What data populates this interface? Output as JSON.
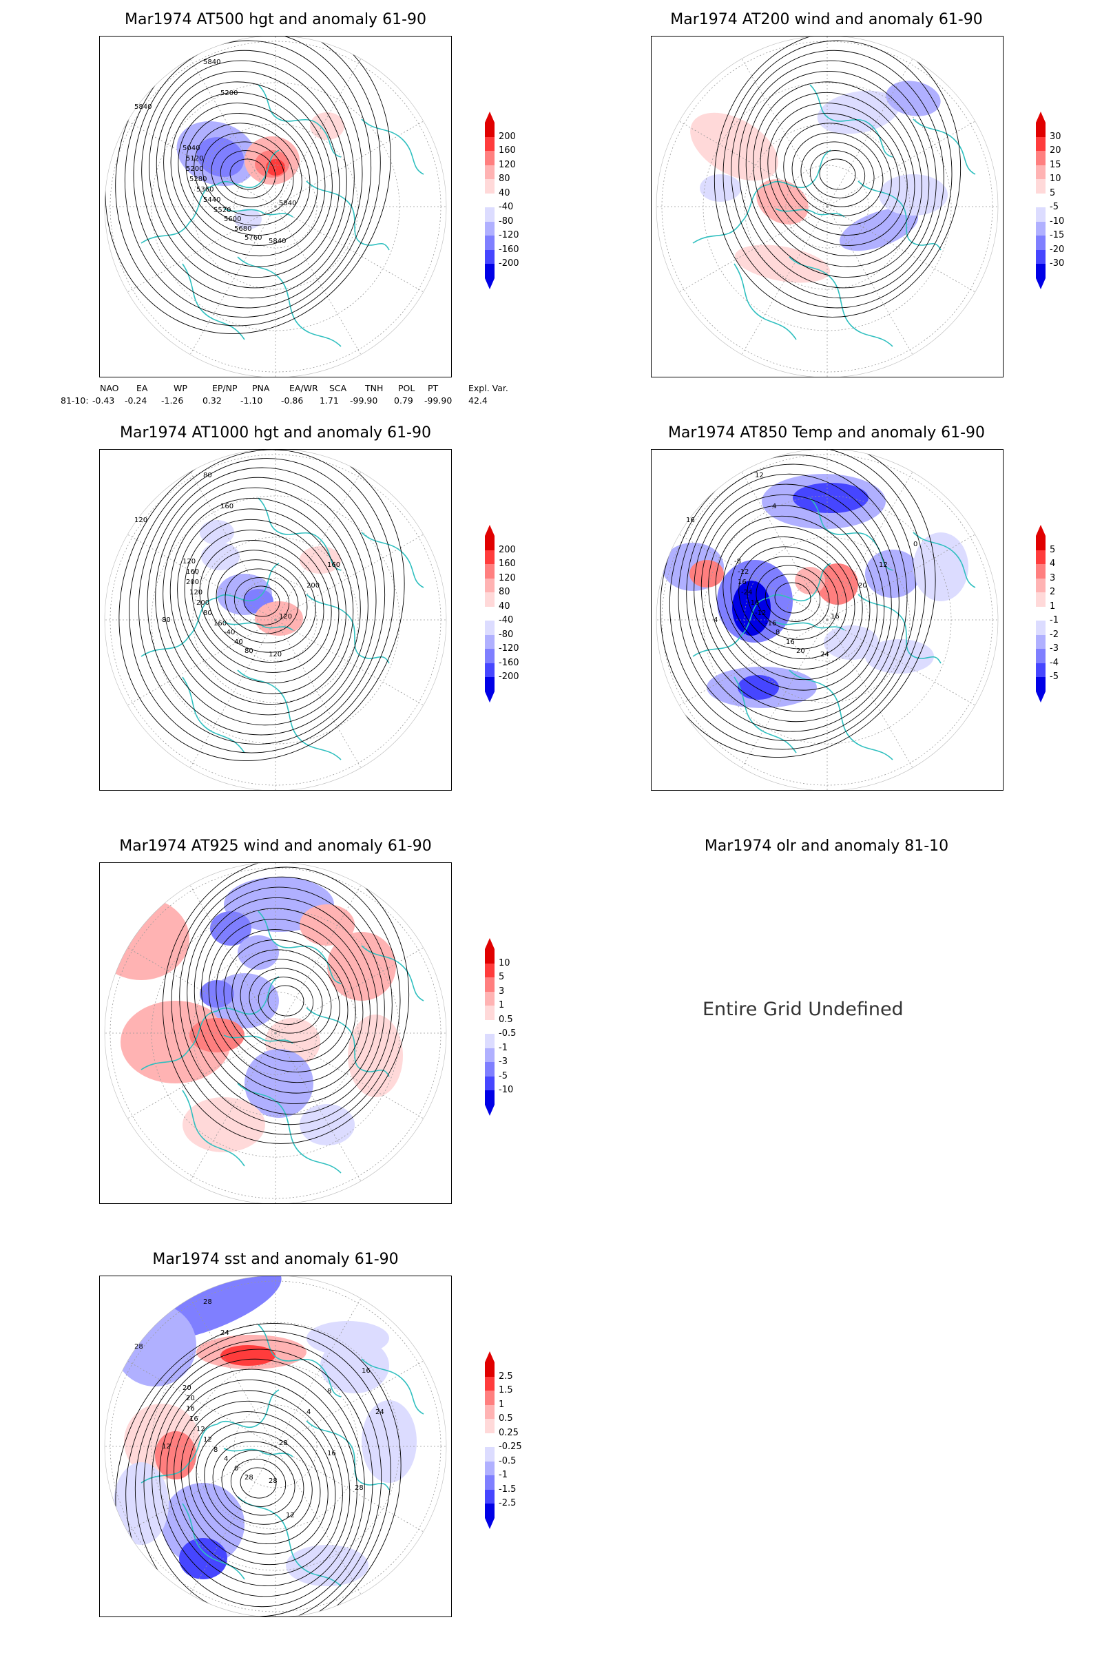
{
  "panels": [
    {
      "id": "p500",
      "title": "Mar1974 AT500 hgt and anomaly 61-90",
      "legend": [
        "200",
        "160",
        "120",
        "80",
        "40",
        "-40",
        "-80",
        "-120",
        "-160",
        "-200"
      ],
      "contours": [
        "5840",
        "5840",
        "5200",
        "5040",
        "5120",
        "5200",
        "5280",
        "5360",
        "5440",
        "5520",
        "5600",
        "5680",
        "5760",
        "5840",
        "5840"
      ]
    },
    {
      "id": "p200",
      "title": "Mar1974 AT200 wind and anomaly 61-90",
      "legend": [
        "30",
        "20",
        "15",
        "10",
        "5",
        "-5",
        "-10",
        "-15",
        "-20",
        "-30"
      ]
    },
    {
      "id": "p1000",
      "title": "Mar1974 AT1000 hgt and anomaly 61-90",
      "legend": [
        "200",
        "160",
        "120",
        "80",
        "40",
        "-40",
        "-80",
        "-120",
        "-160",
        "-200"
      ],
      "contours": [
        "120",
        "80",
        "160",
        "120",
        "160",
        "200",
        "120",
        "200",
        "80",
        "160",
        "-40",
        "40",
        "80",
        "120",
        "120",
        "200",
        "160",
        "80"
      ]
    },
    {
      "id": "p850",
      "title": "Mar1974 AT850 Temp and anomaly 61-90",
      "legend": [
        "5",
        "4",
        "3",
        "2",
        "1",
        "-1",
        "-2",
        "-3",
        "-4",
        "-5"
      ],
      "contours": [
        "16",
        "12",
        "4",
        "-8",
        "-12",
        "16",
        "-24",
        "-16",
        "-12",
        "-16",
        "8",
        "16",
        "20",
        "24",
        "16",
        "20",
        "12",
        "4",
        "0"
      ]
    },
    {
      "id": "p925",
      "title": "Mar1974 AT925 wind and anomaly 61-90",
      "legend": [
        "10",
        "5",
        "3",
        "1",
        "0.5",
        "-0.5",
        "-1",
        "-3",
        "-5",
        "-10"
      ]
    },
    {
      "id": "polr",
      "title": "Mar1974 olr and anomaly 81-10",
      "message": "Entire Grid Undefined"
    },
    {
      "id": "psst",
      "title": "Mar1974 sst and anomaly 61-90",
      "legend": [
        "2.5",
        "1.5",
        "1",
        "0.5",
        "0.25",
        "-0.25",
        "-0.5",
        "-1",
        "-1.5",
        "-2.5"
      ],
      "contours": [
        "28",
        "28",
        "24",
        "20",
        "20",
        "16",
        "16",
        "12",
        "12",
        "8",
        "4",
        "0",
        "28",
        "28",
        "28",
        "4",
        "8",
        "12",
        "16",
        "24",
        "28",
        "12",
        "16"
      ]
    }
  ],
  "teleconnections": {
    "headers": [
      "NAO",
      "EA",
      "WP",
      "EP/NP",
      "PNA",
      "EA/WR",
      "SCA",
      "TNH",
      "POL",
      "PT",
      "Expl. Var."
    ],
    "row_label": "81-10:",
    "values": [
      "-0.43",
      "-0.24",
      "-1.26",
      "0.32",
      "-1.10",
      "-0.86",
      "1.71",
      "-99.90",
      "0.79",
      "-99.90",
      "42.4"
    ]
  },
  "colors": {
    "coast": "#2fbfbf",
    "pos": [
      "#ffd9d9",
      "#ffb3b3",
      "#ff7f7f",
      "#ff3c3c",
      "#e00000"
    ],
    "neg": [
      "#dcdcff",
      "#b0b0ff",
      "#7f7fff",
      "#4646ff",
      "#0000e6"
    ]
  }
}
